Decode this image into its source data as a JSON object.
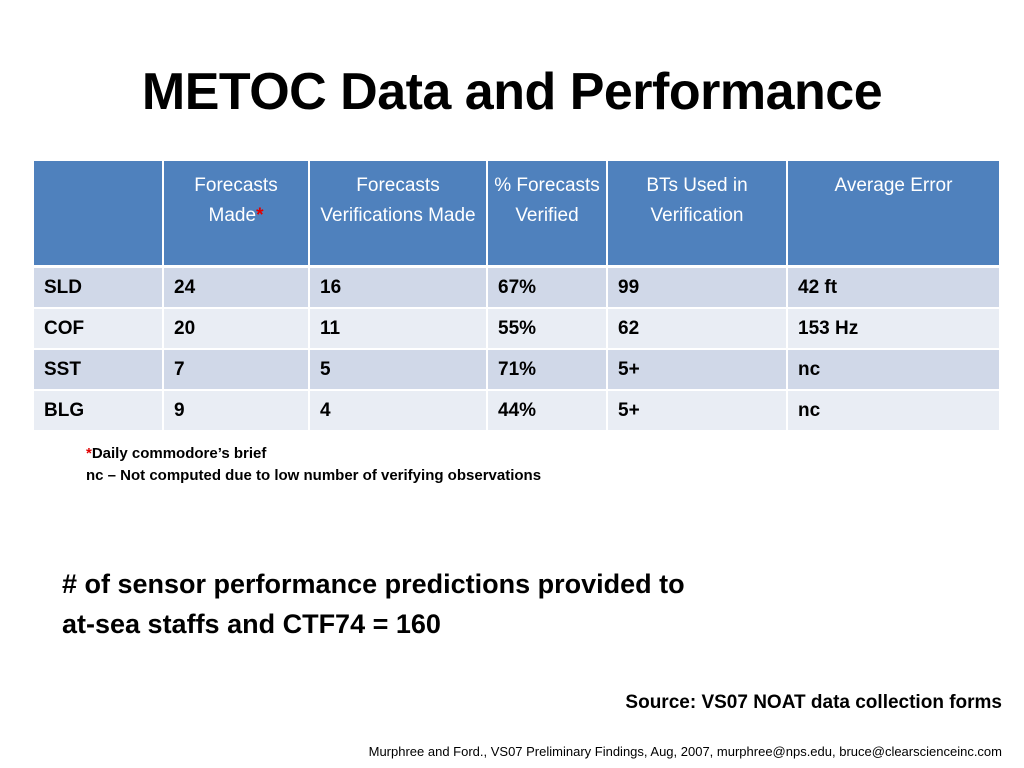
{
  "slide": {
    "title": "METOC Data and Performance",
    "table": {
      "headers": [
        "",
        "Forecasts Made",
        "Forecasts Verifications Made",
        "% Forecasts Verified",
        "BTs Used in Verification",
        "Average Error"
      ],
      "header_marker": "*",
      "rows": [
        [
          "SLD",
          "24",
          "16",
          "67%",
          "99",
          "42 ft"
        ],
        [
          "COF",
          "20",
          "11",
          "55%",
          "62",
          "153 Hz"
        ],
        [
          "SST",
          "7",
          "5",
          "71%",
          "5+",
          "nc"
        ],
        [
          "BLG",
          "9",
          "4",
          "44%",
          "5+",
          "nc"
        ]
      ]
    },
    "footnotes": {
      "marker": "*",
      "line1": "Daily commodore’s brief",
      "line2": "nc – Not computed due to low number of verifying observations"
    },
    "summary": {
      "line1": "# of sensor performance predictions provided to",
      "line2": "at-sea staffs and CTF74 = 160"
    },
    "source": "Source:  VS07 NOAT data collection forms",
    "credit": "Murphree and Ford., VS07 Preliminary Findings, Aug, 2007, murphree@nps.edu, bruce@clearscienceinc.com"
  },
  "colors": {
    "header_bg": "#4f81bd",
    "row_odd_bg": "#d0d8e8",
    "row_even_bg": "#e9edf4",
    "asterisk": "#e00000"
  }
}
